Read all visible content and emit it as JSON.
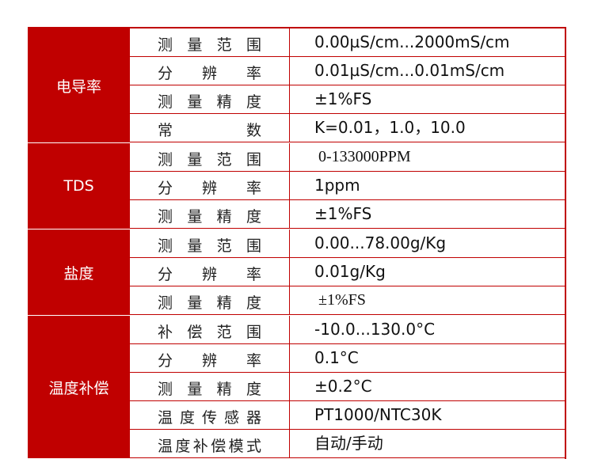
{
  "groups": [
    {
      "name": "电导率",
      "rows": [
        {
          "param": "测量范围",
          "value": "0.00µS/cm...2000mS/cm"
        },
        {
          "param": "分辨率",
          "value": "0.01µS/cm...0.01mS/cm"
        },
        {
          "param": "测量精度",
          "value": "±1%FS"
        },
        {
          "param": "常数",
          "value": "K=0.01，1.0，10.0"
        }
      ]
    },
    {
      "name": "TDS",
      "rows": [
        {
          "param": "测量范围",
          "value": "0-133000PPM",
          "serif": true
        },
        {
          "param": "分辨率",
          "value": "1ppm"
        },
        {
          "param": "测量精度",
          "value": "±1%FS"
        }
      ]
    },
    {
      "name": "盐度",
      "rows": [
        {
          "param": "测量范围",
          "value": "0.00...78.00g/Kg"
        },
        {
          "param": "分辨率",
          "value": "0.01g/Kg"
        },
        {
          "param": "测量精度",
          "value": "±1%FS",
          "serif": true
        }
      ]
    },
    {
      "name": "温度补偿",
      "rows": [
        {
          "param": "补偿范围",
          "value": "-10.0...130.0°C"
        },
        {
          "param": "分辨率",
          "value": "0.1°C"
        },
        {
          "param": "测量精度",
          "value": "±0.2°C"
        },
        {
          "param": "温度传感器",
          "value": "PT1000/NTC30K"
        },
        {
          "param": "温度补偿模式",
          "value": "自动/手动"
        }
      ]
    }
  ],
  "colors": {
    "accent": "#c00000"
  }
}
